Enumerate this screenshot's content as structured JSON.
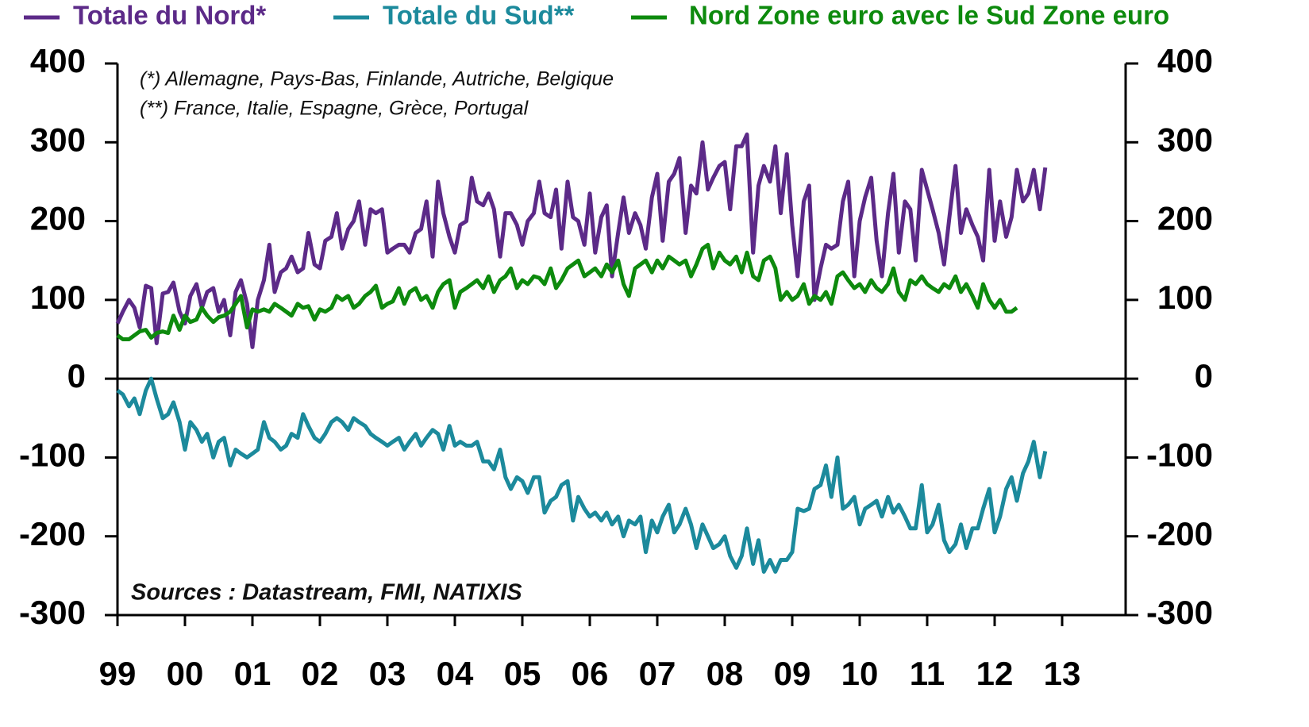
{
  "chart_data": {
    "type": "line",
    "annotations": [
      "(*) Allemagne, Pays-Bas, Finlande, Autriche, Belgique",
      "(**) France, Italie, Espagne, Grèce, Portugal",
      "Sources : Datastream, FMI, NATIXIS"
    ],
    "x": [
      1999,
      1999.08,
      1999.17,
      1999.25,
      1999.33,
      1999.42,
      1999.5,
      1999.58,
      1999.67,
      1999.75,
      1999.83,
      1999.92,
      2000,
      2000.08,
      2000.17,
      2000.25,
      2000.33,
      2000.42,
      2000.5,
      2000.58,
      2000.67,
      2000.75,
      2000.83,
      2000.92,
      2001,
      2001.08,
      2001.17,
      2001.25,
      2001.33,
      2001.42,
      2001.5,
      2001.58,
      2001.67,
      2001.75,
      2001.83,
      2001.92,
      2002,
      2002.08,
      2002.17,
      2002.25,
      2002.33,
      2002.42,
      2002.5,
      2002.58,
      2002.67,
      2002.75,
      2002.83,
      2002.92,
      2003,
      2003.08,
      2003.17,
      2003.25,
      2003.33,
      2003.42,
      2003.5,
      2003.58,
      2003.67,
      2003.75,
      2003.83,
      2003.92,
      2004,
      2004.08,
      2004.17,
      2004.25,
      2004.33,
      2004.42,
      2004.5,
      2004.58,
      2004.67,
      2004.75,
      2004.83,
      2004.92,
      2005,
      2005.08,
      2005.17,
      2005.25,
      2005.33,
      2005.42,
      2005.5,
      2005.58,
      2005.67,
      2005.75,
      2005.83,
      2005.92,
      2006,
      2006.08,
      2006.17,
      2006.25,
      2006.33,
      2006.42,
      2006.5,
      2006.58,
      2006.67,
      2006.75,
      2006.83,
      2006.92,
      2007,
      2007.08,
      2007.17,
      2007.25,
      2007.33,
      2007.42,
      2007.5,
      2007.58,
      2007.67,
      2007.75,
      2007.83,
      2007.92,
      2008,
      2008.08,
      2008.17,
      2008.25,
      2008.33,
      2008.42,
      2008.5,
      2008.58,
      2008.67,
      2008.75,
      2008.83,
      2008.92,
      2009,
      2009.08,
      2009.17,
      2009.25,
      2009.33,
      2009.42,
      2009.5,
      2009.58,
      2009.67,
      2009.75,
      2009.83,
      2009.92,
      2010,
      2010.08,
      2010.17,
      2010.25,
      2010.33,
      2010.42,
      2010.5,
      2010.58,
      2010.67,
      2010.75,
      2010.83,
      2010.92,
      2011,
      2011.08,
      2011.17,
      2011.25,
      2011.33,
      2011.42,
      2011.5,
      2011.58,
      2011.67,
      2011.75,
      2011.83,
      2011.92,
      2012,
      2012.08,
      2012.17,
      2012.25,
      2012.33,
      2012.42,
      2012.5,
      2012.58,
      2012.67,
      2012.75
    ],
    "series": [
      {
        "name": "Totale du Nord*",
        "color": "#5c2a88",
        "values": [
          70,
          85,
          100,
          90,
          65,
          118,
          115,
          45,
          108,
          110,
          122,
          85,
          70,
          105,
          120,
          90,
          110,
          115,
          85,
          100,
          55,
          110,
          125,
          95,
          40,
          100,
          125,
          170,
          110,
          135,
          140,
          155,
          135,
          140,
          185,
          145,
          140,
          175,
          180,
          210,
          165,
          190,
          200,
          225,
          170,
          215,
          210,
          215,
          160,
          165,
          170,
          170,
          160,
          185,
          190,
          225,
          155,
          250,
          210,
          180,
          160,
          195,
          200,
          255,
          225,
          220,
          235,
          215,
          155,
          210,
          210,
          195,
          170,
          200,
          210,
          250,
          210,
          205,
          240,
          165,
          250,
          205,
          200,
          170,
          235,
          160,
          205,
          220,
          130,
          185,
          230,
          185,
          210,
          195,
          165,
          230,
          260,
          175,
          250,
          260,
          280,
          185,
          245,
          235,
          300,
          240,
          255,
          270,
          275,
          215,
          295,
          295,
          310,
          160,
          245,
          270,
          250,
          295,
          210,
          285,
          195,
          130,
          225,
          245,
          100,
          140,
          170,
          165,
          170,
          225,
          250,
          130,
          200,
          230,
          255,
          175,
          130,
          210,
          260,
          160,
          225,
          215,
          150,
          265,
          240,
          215,
          185,
          145,
          205,
          270,
          185,
          215,
          195,
          180,
          150,
          265,
          175,
          225,
          180,
          205,
          265,
          225,
          235,
          265,
          215,
          268
        ]
      },
      {
        "name": "Totale du Sud**",
        "color": "#1c8a9c",
        "values": [
          -15,
          -20,
          -35,
          -25,
          -45,
          -15,
          0,
          -25,
          -50,
          -45,
          -30,
          -55,
          -90,
          -55,
          -65,
          -80,
          -70,
          -100,
          -80,
          -75,
          -110,
          -90,
          -95,
          -100,
          -95,
          -90,
          -55,
          -75,
          -80,
          -90,
          -85,
          -70,
          -75,
          -45,
          -60,
          -75,
          -80,
          -70,
          -55,
          -50,
          -55,
          -65,
          -50,
          -55,
          -60,
          -70,
          -75,
          -80,
          -85,
          -80,
          -75,
          -90,
          -80,
          -70,
          -85,
          -75,
          -65,
          -70,
          -90,
          -60,
          -85,
          -80,
          -85,
          -85,
          -80,
          -105,
          -105,
          -115,
          -90,
          -125,
          -140,
          -125,
          -130,
          -145,
          -125,
          -125,
          -170,
          -155,
          -150,
          -135,
          -130,
          -180,
          -150,
          -165,
          -175,
          -170,
          -180,
          -170,
          -185,
          -175,
          -200,
          -180,
          -185,
          -175,
          -220,
          -180,
          -195,
          -175,
          -160,
          -195,
          -185,
          -165,
          -185,
          -215,
          -185,
          -200,
          -215,
          -210,
          -200,
          -225,
          -240,
          -225,
          -190,
          -235,
          -205,
          -245,
          -230,
          -245,
          -230,
          -230,
          -220,
          -165,
          -168,
          -165,
          -140,
          -135,
          -110,
          -150,
          -100,
          -165,
          -160,
          -150,
          -185,
          -165,
          -160,
          -155,
          -175,
          -150,
          -170,
          -160,
          -175,
          -190,
          -190,
          -135,
          -195,
          -185,
          -160,
          -205,
          -220,
          -210,
          -185,
          -215,
          -190,
          -190,
          -165,
          -140,
          -195,
          -175,
          -140,
          -125,
          -155,
          -120,
          -105,
          -80,
          -125,
          -92
        ]
      },
      {
        "name": "Nord Zone euro avec le Sud Zone euro",
        "color": "#0d8a0d",
        "values": [
          55,
          50,
          50,
          55,
          60,
          62,
          52,
          58,
          60,
          58,
          80,
          62,
          80,
          72,
          75,
          90,
          80,
          72,
          78,
          80,
          85,
          95,
          105,
          65,
          88,
          85,
          88,
          85,
          95,
          90,
          85,
          80,
          95,
          90,
          92,
          75,
          88,
          85,
          90,
          105,
          100,
          105,
          90,
          95,
          105,
          110,
          118,
          90,
          95,
          98,
          115,
          95,
          110,
          115,
          100,
          105,
          90,
          110,
          120,
          125,
          90,
          110,
          115,
          120,
          125,
          115,
          130,
          110,
          125,
          130,
          140,
          115,
          125,
          120,
          130,
          128,
          120,
          140,
          115,
          125,
          140,
          145,
          150,
          130,
          135,
          140,
          130,
          145,
          135,
          150,
          120,
          105,
          140,
          145,
          150,
          135,
          150,
          140,
          155,
          150,
          145,
          150,
          130,
          145,
          165,
          170,
          140,
          160,
          150,
          145,
          155,
          135,
          160,
          130,
          125,
          150,
          155,
          140,
          100,
          110,
          100,
          105,
          120,
          95,
          105,
          100,
          110,
          95,
          130,
          135,
          125,
          115,
          120,
          110,
          125,
          115,
          110,
          120,
          140,
          110,
          100,
          125,
          120,
          130,
          120,
          115,
          110,
          120,
          115,
          130,
          110,
          120,
          105,
          90,
          120,
          100,
          90,
          100,
          85,
          85,
          90,
          null,
          null,
          null,
          null,
          null
        ]
      }
    ],
    "xlim": [
      1999,
      2014
    ],
    "xticks": [
      {
        "value": 1999,
        "label": "99"
      },
      {
        "value": 2000,
        "label": "00"
      },
      {
        "value": 2001,
        "label": "01"
      },
      {
        "value": 2002,
        "label": "02"
      },
      {
        "value": 2003,
        "label": "03"
      },
      {
        "value": 2004,
        "label": "04"
      },
      {
        "value": 2005,
        "label": "05"
      },
      {
        "value": 2006,
        "label": "06"
      },
      {
        "value": 2007,
        "label": "07"
      },
      {
        "value": 2008,
        "label": "08"
      },
      {
        "value": 2009,
        "label": "09"
      },
      {
        "value": 2010,
        "label": "10"
      },
      {
        "value": 2011,
        "label": "11"
      },
      {
        "value": 2012,
        "label": "12"
      },
      {
        "value": 2013,
        "label": "13"
      }
    ],
    "ylim": [
      -300,
      400
    ],
    "yticks": [
      -300,
      -200,
      -100,
      0,
      100,
      200,
      300,
      400
    ],
    "y2lim": [
      -300,
      400
    ],
    "y2ticks": [
      -300,
      -200,
      -100,
      0,
      100,
      200,
      300,
      400
    ],
    "legend": "top"
  }
}
